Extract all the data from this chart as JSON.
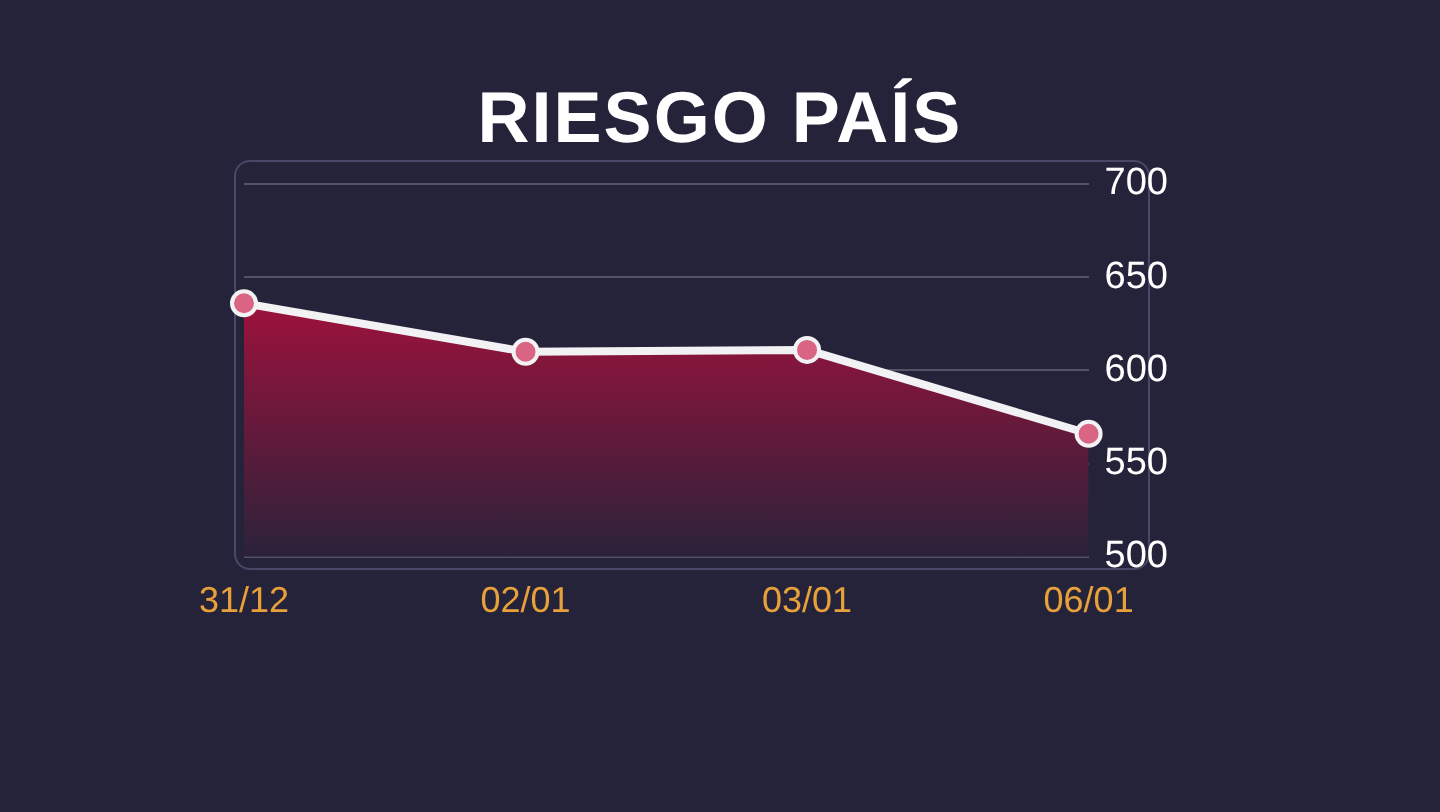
{
  "chart_data": {
    "type": "area",
    "title": "RIESGO PAÍS",
    "categories": [
      "31/12",
      "02/01",
      "03/01",
      "06/01"
    ],
    "series": [
      {
        "color": "#a8103c",
        "values": [
          636,
          610,
          611,
          566
        ]
      }
    ],
    "ylim": [
      500,
      700
    ],
    "yticks": [
      500,
      550,
      600,
      650,
      700
    ],
    "grid": "y",
    "legend": false,
    "marker": "circle"
  }
}
